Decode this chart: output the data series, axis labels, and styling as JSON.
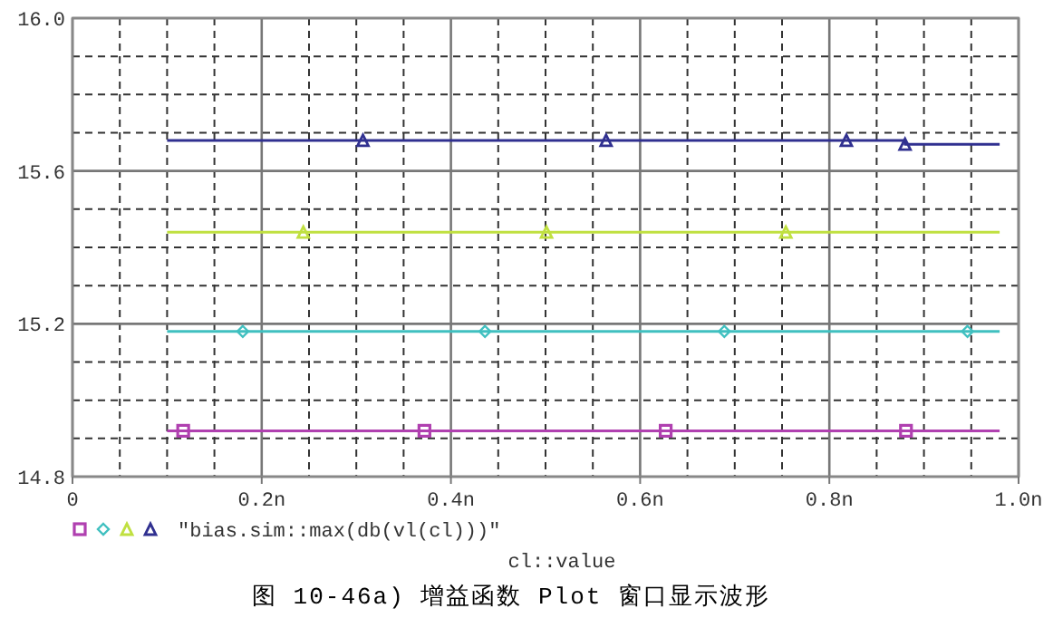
{
  "chart_data": {
    "type": "line",
    "xlabel": "cl::value",
    "legend_title": "\"bias.sim::max(db(vl(cl)))\"",
    "grid": true,
    "line_style": "solid",
    "xlim": [
      0,
      1.0
    ],
    "xticks": [
      0,
      {
        "value": 0.2,
        "label": "0.2n"
      },
      {
        "value": 0.4,
        "label": "0.4n"
      },
      {
        "value": 0.6,
        "label": "0.6n"
      },
      {
        "value": 0.8,
        "label": "0.8n"
      },
      {
        "value": 1.0,
        "label": "1.0n"
      }
    ],
    "ylim": [
      14.8,
      16.0
    ],
    "yticks": [
      {
        "value": 14.8,
        "label": "14.8"
      },
      {
        "value": 15.2,
        "label": "15.2"
      },
      {
        "value": 15.6,
        "label": "15.6"
      },
      {
        "value": 16.0,
        "label": "16.0"
      }
    ],
    "series": [
      {
        "color": "#b040b0",
        "marker": "square",
        "x": [
          0.1,
          0.117,
          0.372,
          0.627,
          0.881,
          0.98
        ],
        "values": [
          14.92,
          14.92,
          14.92,
          14.92,
          14.92,
          14.92
        ]
      },
      {
        "color": "#40c0c0",
        "marker": "diamond",
        "x": [
          0.1,
          0.18,
          0.436,
          0.689,
          0.946,
          0.98
        ],
        "values": [
          15.18,
          15.18,
          15.18,
          15.18,
          15.18,
          15.18
        ]
      },
      {
        "color": "#c0e040",
        "marker": "triangle",
        "x": [
          0.1,
          0.244,
          0.501,
          0.754,
          0.98
        ],
        "values": [
          15.44,
          15.44,
          15.44,
          15.44,
          15.44
        ]
      },
      {
        "color": "#303090",
        "marker": "triangle",
        "x": [
          0.1,
          0.307,
          0.564,
          0.818,
          0.88,
          0.98
        ],
        "values": [
          15.68,
          15.68,
          15.68,
          15.68,
          15.67,
          15.67
        ]
      }
    ],
    "annotations": [
      "图 10-46a) 增益函数 Plot 窗口显示波形"
    ]
  }
}
